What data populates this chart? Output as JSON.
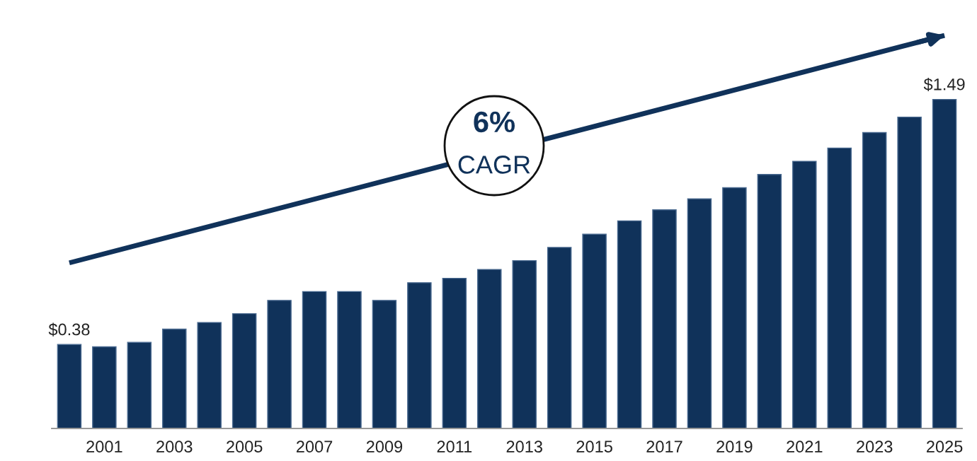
{
  "chart_data": {
    "type": "bar",
    "categories": [
      null,
      "2001",
      null,
      "2003",
      null,
      "2005",
      null,
      "2007",
      null,
      "2009",
      null,
      "2011",
      null,
      "2013",
      null,
      "2015",
      null,
      "2017",
      null,
      "2019",
      null,
      "2021",
      null,
      "2023",
      null,
      "2025"
    ],
    "series": [
      {
        "color": "#10325a",
        "values": [
          0.38,
          0.37,
          0.39,
          0.45,
          0.48,
          0.52,
          0.58,
          0.62,
          0.62,
          0.58,
          0.66,
          0.68,
          0.72,
          0.76,
          0.82,
          0.88,
          0.94,
          0.99,
          1.04,
          1.09,
          1.15,
          1.21,
          1.27,
          1.34,
          1.41,
          1.49
        ],
        "value_labels": [
          "$0.38",
          null,
          null,
          null,
          null,
          null,
          null,
          null,
          null,
          null,
          null,
          null,
          null,
          null,
          null,
          null,
          null,
          null,
          null,
          null,
          null,
          null,
          null,
          null,
          null,
          "$1.49"
        ]
      },
      {
        "type": "line",
        "color": "#10325a",
        "values": [
          0.75,
          null,
          null,
          null,
          null,
          null,
          null,
          null,
          null,
          null,
          null,
          null,
          null,
          null,
          null,
          null,
          null,
          null,
          null,
          null,
          null,
          null,
          null,
          null,
          null,
          1.78
        ]
      }
    ],
    "annotations": [
      "6%",
      "CAGR"
    ],
    "grid": false,
    "legend": false
  }
}
